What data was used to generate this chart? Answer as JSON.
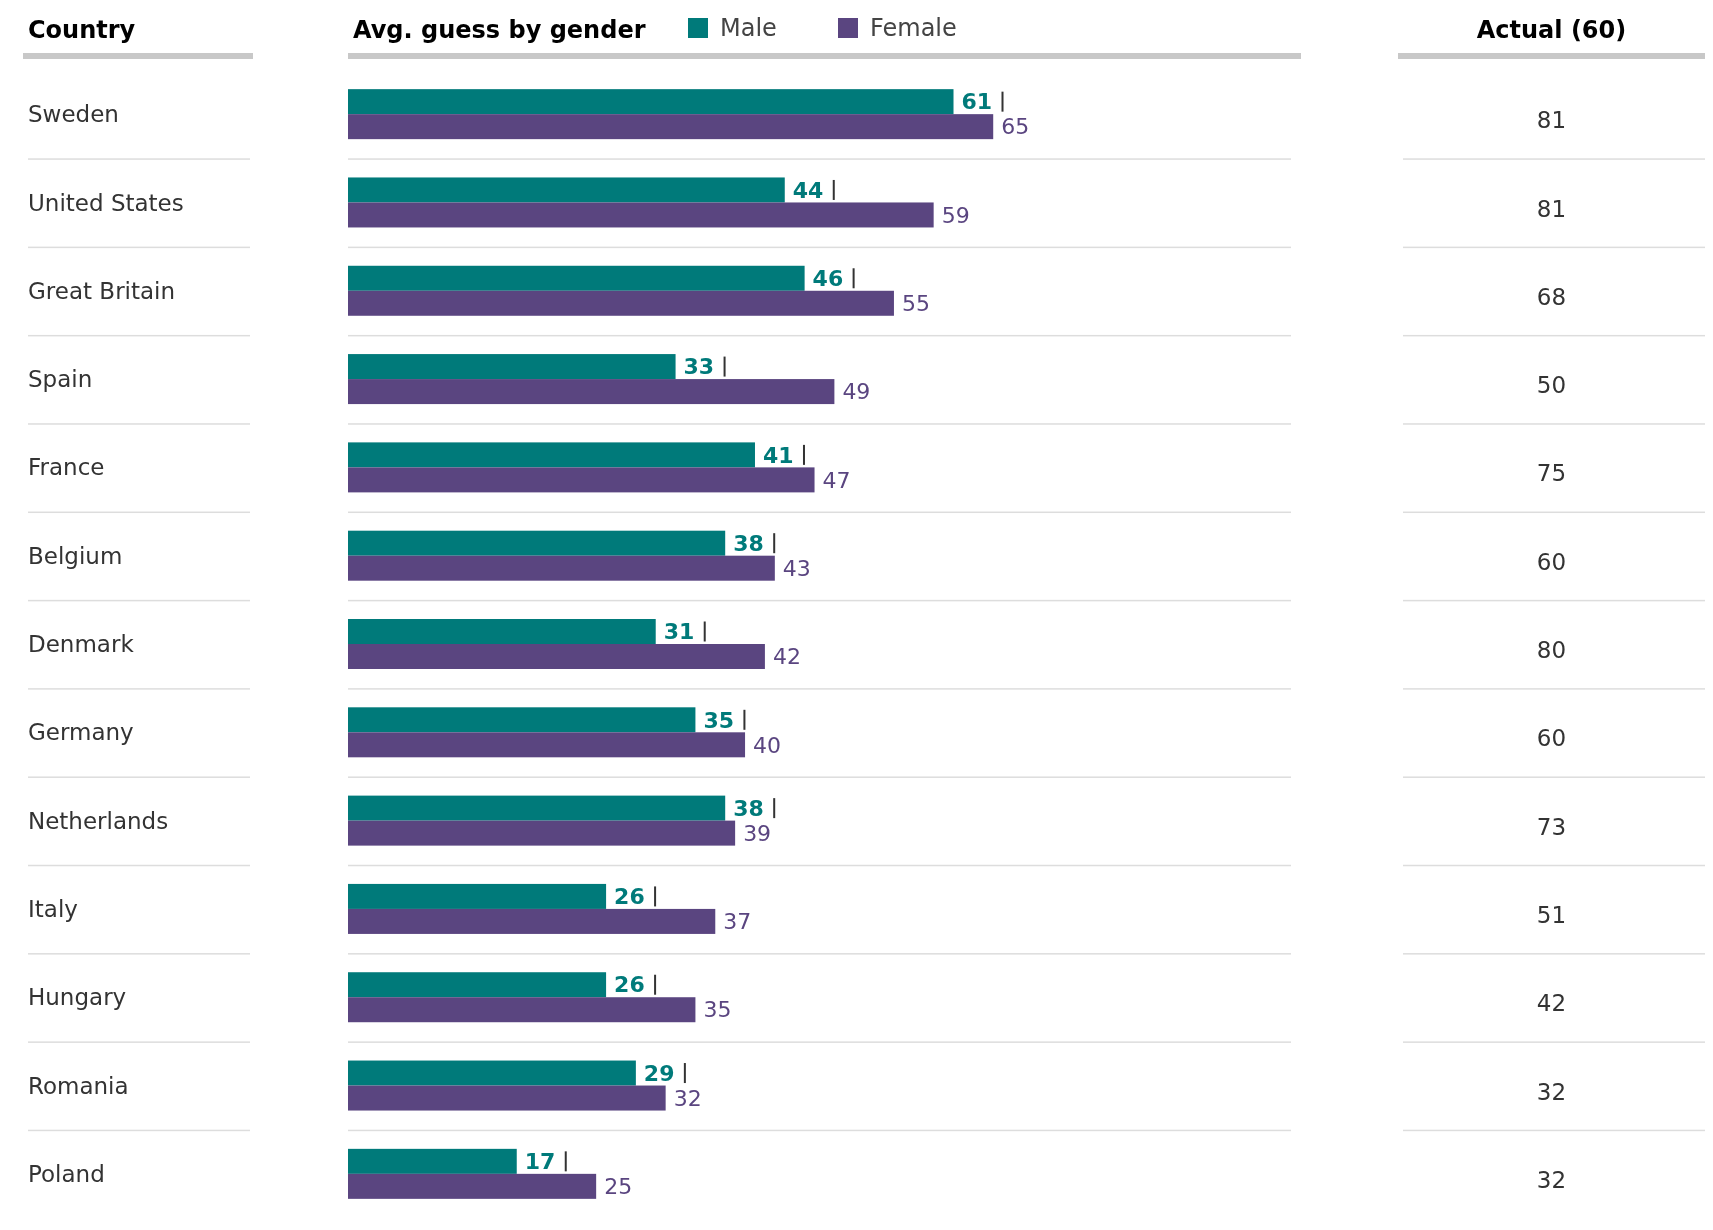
{
  "chart_data": {
    "type": "bar",
    "orientation": "horizontal",
    "title": "Avg. guess by gender",
    "ylabel": "Country",
    "categories": [
      "Sweden",
      "United States",
      "Great Britain",
      "Spain",
      "France",
      "Belgium",
      "Denmark",
      "Germany",
      "Netherlands",
      "Italy",
      "Hungary",
      "Romania",
      "Poland"
    ],
    "series": [
      {
        "name": "Male",
        "color": "#007a7a",
        "values": [
          61,
          44,
          46,
          33,
          41,
          38,
          31,
          35,
          38,
          26,
          26,
          29,
          17
        ]
      },
      {
        "name": "Female",
        "color": "#5a4580",
        "values": [
          65,
          59,
          55,
          49,
          47,
          43,
          42,
          40,
          39,
          37,
          35,
          32,
          25
        ]
      }
    ],
    "xlim": [
      0,
      95
    ],
    "data_labels": true,
    "legend": "top",
    "grid": "y",
    "annotations": [
      "Actual (60)",
      "81",
      "81",
      "68",
      "50",
      "75",
      "60",
      "80",
      "60",
      "73",
      "51",
      "42",
      "32",
      "32"
    ]
  }
}
